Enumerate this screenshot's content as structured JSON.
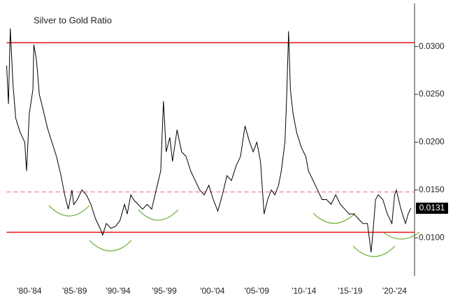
{
  "chart_data": {
    "type": "line",
    "title": "Silver to Gold Ratio",
    "x": [
      1980.0,
      1980.2,
      1980.4,
      1980.7,
      1981.0,
      1981.5,
      1982.0,
      1982.2,
      1982.5,
      1982.9,
      1983.0,
      1983.3,
      1983.6,
      1984.0,
      1984.5,
      1985.0,
      1985.5,
      1986.0,
      1986.4,
      1986.8,
      1987.2,
      1987.4,
      1987.8,
      1988.3,
      1988.8,
      1989.3,
      1989.8,
      1990.3,
      1990.6,
      1991.0,
      1991.5,
      1992.0,
      1992.5,
      1993.0,
      1993.3,
      1993.7,
      1994.0,
      1994.5,
      1995.0,
      1995.5,
      1996.0,
      1996.5,
      1997.0,
      1997.3,
      1997.6,
      1998.0,
      1998.3,
      1998.8,
      1999.3,
      1999.8,
      2000.3,
      2000.8,
      2001.3,
      2001.8,
      2002.3,
      2002.8,
      2003.3,
      2003.8,
      2004.3,
      2004.8,
      2005.3,
      2005.8,
      2006.3,
      2006.8,
      2007.2,
      2007.6,
      2008.0,
      2008.4,
      2008.8,
      2009.2,
      2009.6,
      2010.0,
      2010.3,
      2010.7,
      2010.9,
      2011.1,
      2011.3,
      2011.6,
      2012.0,
      2012.5,
      2013.0,
      2013.3,
      2013.8,
      2014.3,
      2014.8,
      2015.3,
      2015.8,
      2016.3,
      2016.8,
      2017.3,
      2017.8,
      2018.3,
      2018.8,
      2019.3,
      2019.8,
      2020.2,
      2020.4,
      2020.7,
      2021.0,
      2021.5,
      2022.0,
      2022.5,
      2022.8,
      2023.0,
      2023.5,
      2024.0,
      2024.3,
      2024.6
    ],
    "series": [
      {
        "name": "Silver to Gold Ratio",
        "color": "#000000",
        "values": [
          0.028,
          0.024,
          0.0319,
          0.026,
          0.0225,
          0.021,
          0.02,
          0.017,
          0.023,
          0.0255,
          0.0302,
          0.0285,
          0.025,
          0.0235,
          0.0215,
          0.02,
          0.0185,
          0.0165,
          0.0145,
          0.013,
          0.015,
          0.0135,
          0.014,
          0.015,
          0.0145,
          0.0135,
          0.012,
          0.011,
          0.0103,
          0.0115,
          0.011,
          0.0112,
          0.0118,
          0.0135,
          0.0125,
          0.0145,
          0.014,
          0.0135,
          0.013,
          0.0135,
          0.013,
          0.015,
          0.017,
          0.0243,
          0.019,
          0.0205,
          0.018,
          0.0213,
          0.019,
          0.0185,
          0.017,
          0.016,
          0.015,
          0.0145,
          0.0155,
          0.014,
          0.0128,
          0.0145,
          0.0165,
          0.016,
          0.0175,
          0.0185,
          0.0217,
          0.02,
          0.019,
          0.02,
          0.018,
          0.0125,
          0.014,
          0.015,
          0.0145,
          0.0155,
          0.017,
          0.02,
          0.025,
          0.0316,
          0.0255,
          0.023,
          0.021,
          0.0195,
          0.0185,
          0.017,
          0.016,
          0.015,
          0.014,
          0.014,
          0.0135,
          0.0145,
          0.0135,
          0.013,
          0.0125,
          0.0125,
          0.012,
          0.0115,
          0.0115,
          0.0085,
          0.0105,
          0.014,
          0.0145,
          0.014,
          0.0125,
          0.0115,
          0.0145,
          0.015,
          0.013,
          0.0115,
          0.0125,
          0.0131
        ]
      }
    ],
    "xlim": [
      1980,
      2025
    ],
    "xticks": [
      {
        "value": 1982.5,
        "label": "'80-'84"
      },
      {
        "value": 1987.5,
        "label": "'85-'89"
      },
      {
        "value": 1992.3,
        "label": "'90-'94"
      },
      {
        "value": 1997.4,
        "label": "'95-'99"
      },
      {
        "value": 2002.7,
        "label": "'00-'04"
      },
      {
        "value": 2007.6,
        "label": "'05-'09"
      },
      {
        "value": 2012.8,
        "label": "'10-'14"
      },
      {
        "value": 2017.9,
        "label": "'15-'19"
      },
      {
        "value": 2022.8,
        "label": "'20-'24"
      }
    ],
    "ylim": [
      0.006,
      0.0345
    ],
    "yticks": [
      {
        "value": 0.01,
        "label": "0.0100"
      },
      {
        "value": 0.015,
        "label": "0.0150"
      },
      {
        "value": 0.02,
        "label": "0.0200"
      },
      {
        "value": 0.025,
        "label": "0.0250"
      },
      {
        "value": 0.03,
        "label": "0.0300"
      }
    ],
    "hlines": [
      {
        "value": 0.0304,
        "color": "#e8232a",
        "style": "solid"
      },
      {
        "value": 0.01058,
        "color": "#e8232a",
        "style": "solid"
      },
      {
        "value": 0.0148,
        "color": "#f07a7a",
        "style": "dashed"
      }
    ],
    "last_value_label": "0.0131"
  }
}
